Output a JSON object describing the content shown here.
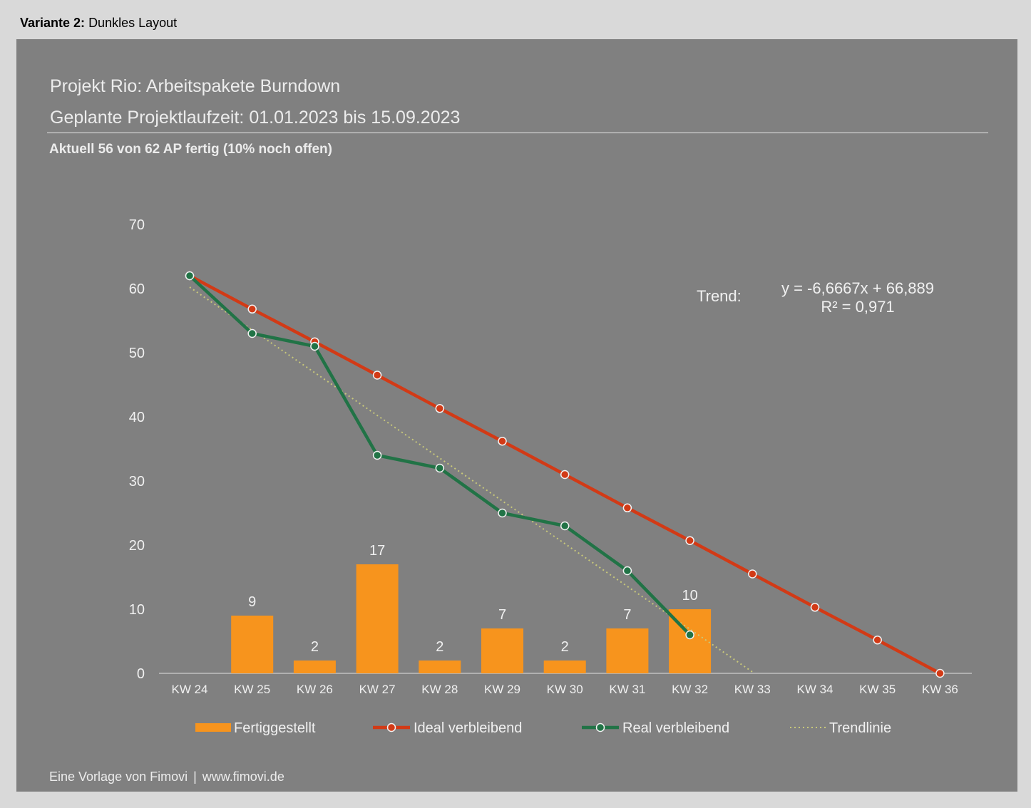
{
  "header": {
    "variant_bold": "Variante 2:",
    "variant_rest": "Dunkles Layout"
  },
  "panel": {
    "title": "Projekt Rio: Arbeitspakete Burndown",
    "subtitle": "Geplante Projektlaufzeit: 01.01.2023 bis 15.09.2023",
    "status": "Aktuell 56 von 62 AP fertig (10% noch offen)",
    "footer_left": "Eine Vorlage von Fimovi",
    "footer_sep": "|",
    "footer_right": "www.fimovi.de"
  },
  "chart_data": {
    "type": "bar",
    "categories": [
      "KW 24",
      "KW 25",
      "KW 26",
      "KW 27",
      "KW 28",
      "KW 29",
      "KW 30",
      "KW 31",
      "KW 32",
      "KW 33",
      "KW 34",
      "KW 35",
      "KW 36"
    ],
    "ylim": [
      0,
      70
    ],
    "yticks": [
      0,
      10,
      20,
      30,
      40,
      50,
      60,
      70
    ],
    "series": [
      {
        "name": "Fertiggestellt",
        "type": "bar",
        "color": "#f7941d",
        "values": [
          null,
          9,
          2,
          17,
          2,
          7,
          2,
          7,
          10,
          null,
          null,
          null,
          null
        ]
      },
      {
        "name": "Ideal verbleibend",
        "type": "line",
        "color": "#d23a16",
        "values": [
          62,
          56.8,
          51.7,
          46.5,
          41.3,
          36.2,
          31,
          25.8,
          20.7,
          15.5,
          10.3,
          5.2,
          0
        ]
      },
      {
        "name": "Real verbleibend",
        "type": "line",
        "color": "#217346",
        "values": [
          62,
          53,
          51,
          34,
          32,
          25,
          23,
          16,
          6,
          null,
          null,
          null,
          null
        ]
      },
      {
        "name": "Trendlinie",
        "type": "trend",
        "color": "#c8c87a",
        "slope": -6.6667,
        "intercept": 66.889
      }
    ],
    "trend_label": "Trend:",
    "trend_equation": "y = -6,6667x + 66,889",
    "trend_r2": "R² = 0,971",
    "legend_position": "bottom",
    "grid": false
  }
}
